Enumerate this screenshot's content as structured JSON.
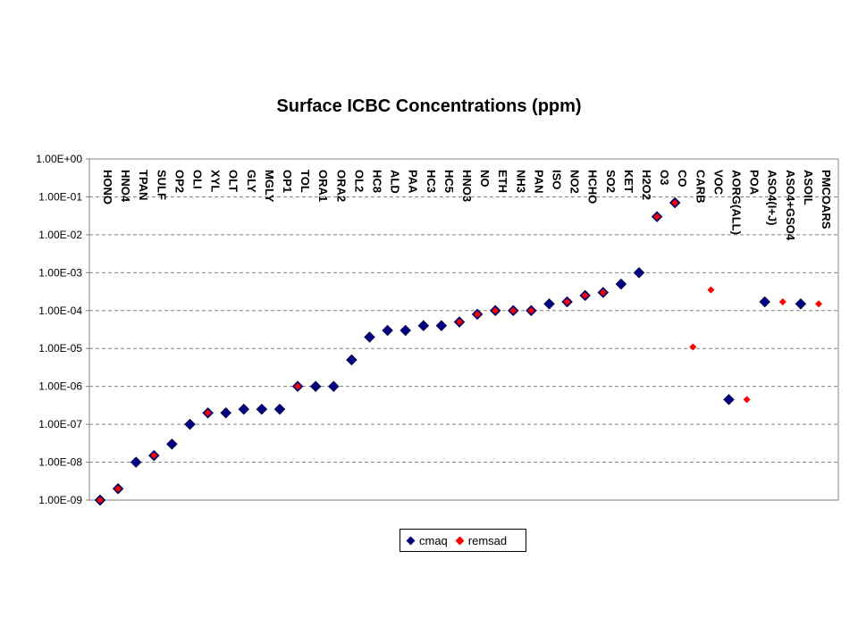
{
  "chart_data": {
    "type": "scatter",
    "title": "Surface ICBC Concentrations (ppm)",
    "yscale": "log",
    "ylim": [
      1e-09,
      1
    ],
    "yticks": [
      "1.00E-09",
      "1.00E-08",
      "1.00E-07",
      "1.00E-06",
      "1.00E-05",
      "1.00E-04",
      "1.00E-03",
      "1.00E-02",
      "1.00E-01",
      "1.00E+00"
    ],
    "grid": true,
    "legend_position": "bottom",
    "categories": [
      "HONO",
      "HNO4",
      "TPAN",
      "SULF",
      "OP2",
      "OLI",
      "XYL",
      "OLT",
      "GLY",
      "MGLY",
      "OP1",
      "TOL",
      "ORA1",
      "ORA2",
      "OL2",
      "HC8",
      "ALD",
      "PAA",
      "HC3",
      "HC5",
      "HNO3",
      "NO",
      "ETH",
      "NH3",
      "PAN",
      "ISO",
      "NO2",
      "HCHO",
      "SO2",
      "KET",
      "H2O2",
      "O3",
      "CO",
      "CARB",
      "VOC",
      "AORG(ALL)",
      "POA",
      "ASO4(I+J)",
      "ASO4+GSO4",
      "ASOIL",
      "PMCOARS"
    ],
    "series": [
      {
        "name": "cmaq",
        "color": "#000080",
        "values": [
          1e-09,
          2e-09,
          1e-08,
          1.5e-08,
          3e-08,
          1e-07,
          2e-07,
          2e-07,
          2.5e-07,
          2.5e-07,
          2.5e-07,
          1e-06,
          1e-06,
          1e-06,
          5e-06,
          2e-05,
          3e-05,
          3e-05,
          4e-05,
          4e-05,
          5e-05,
          8e-05,
          0.0001,
          0.0001,
          0.0001,
          0.00015,
          0.00017,
          0.00025,
          0.0003,
          0.0005,
          0.001,
          0.03,
          0.07,
          null,
          null,
          4.5e-07,
          null,
          0.00017,
          null,
          0.00015,
          null
        ]
      },
      {
        "name": "remsad",
        "color": "#ff0000",
        "values": [
          1e-09,
          2e-09,
          null,
          1.5e-08,
          null,
          null,
          2e-07,
          null,
          null,
          null,
          null,
          1e-06,
          null,
          null,
          null,
          null,
          null,
          null,
          null,
          null,
          5e-05,
          8e-05,
          0.0001,
          0.0001,
          0.0001,
          null,
          0.00017,
          0.00025,
          0.0003,
          null,
          null,
          0.03,
          0.07,
          1.1e-05,
          0.00035,
          null,
          4.5e-07,
          null,
          0.00017,
          null,
          0.00015
        ]
      }
    ]
  }
}
